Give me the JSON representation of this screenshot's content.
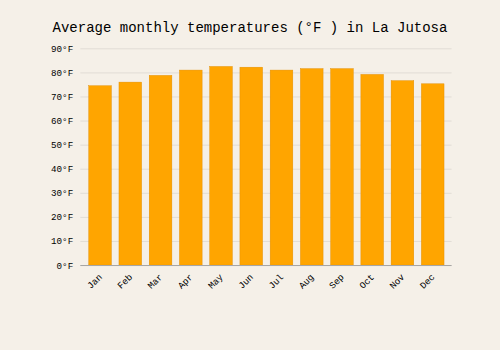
{
  "chart_data": {
    "type": "bar",
    "title": "Average monthly temperatures (°F ) in La Jutosa",
    "categories": [
      "Jan",
      "Feb",
      "Mar",
      "Apr",
      "May",
      "Jun",
      "Jul",
      "Aug",
      "Sep",
      "Oct",
      "Nov",
      "Dec"
    ],
    "values": [
      74.5,
      76.0,
      78.8,
      81.0,
      82.5,
      82.2,
      81.0,
      81.6,
      81.6,
      79.2,
      76.6,
      75.3
    ],
    "color": "#FFA500",
    "ylim": [
      0,
      90
    ],
    "yticks": [
      {
        "value": 0,
        "label": "0°F"
      },
      {
        "value": 10,
        "label": "10°F"
      },
      {
        "value": 20,
        "label": "20°F"
      },
      {
        "value": 30,
        "label": "30°F"
      },
      {
        "value": 40,
        "label": "40°F"
      },
      {
        "value": 50,
        "label": "50°F"
      },
      {
        "value": 60,
        "label": "60°F"
      },
      {
        "value": 70,
        "label": "70°F"
      },
      {
        "value": 80,
        "label": "80°F"
      },
      {
        "value": 90,
        "label": "90°F"
      }
    ],
    "grid": true
  }
}
